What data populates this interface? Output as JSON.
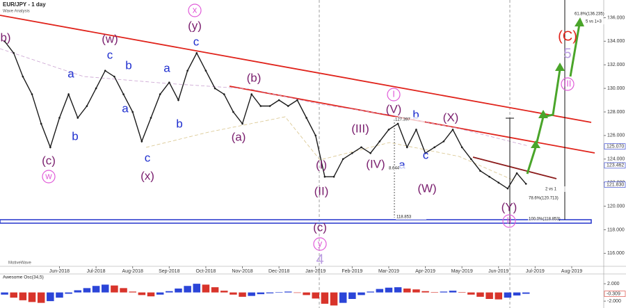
{
  "chart_data": [
    {
      "type": "line",
      "title": "EUR/JPY - 1 day",
      "subtitle": "Wave Analysis",
      "source": "MotiveWave",
      "color": "#1a1a1a",
      "categories": [
        null,
        null,
        null,
        null,
        null,
        null,
        "Jun-2018",
        null,
        null,
        null,
        "Jul-2018",
        null,
        null,
        null,
        "Aug-2018",
        null,
        null,
        null,
        "Sep-2018",
        null,
        null,
        null,
        "Oct-2018",
        null,
        null,
        null,
        "Nov-2018",
        null,
        null,
        null,
        "Dec-2018",
        null,
        null,
        null,
        "Jan-2019",
        null,
        null,
        null,
        "Feb-2019",
        null,
        null,
        null,
        "Mar-2019",
        null,
        null,
        null,
        "Apr-2019",
        null,
        null,
        null,
        "May-2019",
        null,
        null,
        null,
        "Jun-2019",
        null,
        null,
        null,
        "Jul-2019",
        null,
        null,
        null,
        "Aug-2019",
        null,
        null,
        null
      ],
      "values": [
        134,
        133,
        131,
        129.5,
        127,
        125,
        127.5,
        129.5,
        127.5,
        128.5,
        130,
        131.5,
        131,
        129.5,
        128,
        125.5,
        127.5,
        129.5,
        130.5,
        129,
        131.5,
        133,
        131.5,
        130,
        129.5,
        128,
        127,
        129.5,
        128.5,
        128.5,
        129,
        128.5,
        129,
        127.5,
        126,
        122.5,
        122.5,
        124,
        124.5,
        125,
        124.5,
        125.5,
        126.5,
        127,
        125,
        126.5,
        124.5,
        125,
        125.5,
        126.5,
        125,
        124,
        123,
        122.5,
        122,
        121.5,
        122.8,
        121.9,
        null,
        null,
        null,
        null,
        null,
        null,
        null,
        null
      ],
      "ylim": [
        114.9,
        137.5
      ],
      "yticks": [
        {
          "value": 116,
          "label": "116.000"
        },
        {
          "value": 118,
          "label": "118.000"
        },
        {
          "value": 120,
          "label": "120.000"
        },
        {
          "value": 122,
          "label": "122.000"
        },
        {
          "value": 124,
          "label": "124.000"
        },
        {
          "value": 126,
          "label": "126.000"
        },
        {
          "value": 128,
          "label": "128.000"
        },
        {
          "value": 130,
          "label": "130.000"
        },
        {
          "value": 132,
          "label": "132.000"
        },
        {
          "value": 134,
          "label": "134.000"
        },
        {
          "value": 136,
          "label": "136.000"
        }
      ],
      "annotations": [
        {
          "text": "b)",
          "color": "#7a1f6e"
        },
        {
          "text": "(c)",
          "color": "#7a1f6e"
        },
        {
          "text": "w",
          "color": "#e05ad8"
        },
        {
          "text": "a",
          "color": "#1f2fcf"
        },
        {
          "text": "b",
          "color": "#1f2fcf"
        },
        {
          "text": "(w)",
          "color": "#7a1f6e"
        },
        {
          "text": "c",
          "color": "#1f2fcf"
        },
        {
          "text": "b",
          "color": "#1f2fcf"
        },
        {
          "text": "a",
          "color": "#1f2fcf"
        },
        {
          "text": "c",
          "color": "#1f2fcf"
        },
        {
          "text": "(x)",
          "color": "#7a1f6e"
        },
        {
          "text": "a",
          "color": "#1f2fcf"
        },
        {
          "text": "b",
          "color": "#1f2fcf"
        },
        {
          "text": "x",
          "color": "#e05ad8"
        },
        {
          "text": "(y)",
          "color": "#7a1f6e"
        },
        {
          "text": "c",
          "color": "#1f2fcf"
        },
        {
          "text": "(b)",
          "color": "#7a1f6e"
        },
        {
          "text": "(a)",
          "color": "#7a1f6e"
        },
        {
          "text": "I",
          "color": "#e05ad8"
        },
        {
          "text": "(V)",
          "color": "#7a1f6e"
        },
        {
          "text": "b",
          "color": "#1f2fcf"
        },
        {
          "text": "(III)",
          "color": "#7a1f6e"
        },
        {
          "text": "(IV)",
          "color": "#7a1f6e"
        },
        {
          "text": "a",
          "color": "#1f2fcf"
        },
        {
          "text": "c",
          "color": "#1f2fcf"
        },
        {
          "text": "(W)",
          "color": "#7a1f6e"
        },
        {
          "text": "(X)",
          "color": "#7a1f6e"
        },
        {
          "text": "(I)",
          "color": "#7a1f6e"
        },
        {
          "text": "(II)",
          "color": "#7a1f6e"
        },
        {
          "text": "(c)",
          "color": "#7a1f6e"
        },
        {
          "text": "y",
          "color": "#e05ad8"
        },
        {
          "text": "4",
          "color": "#b99be0"
        },
        {
          "text": "(Y)",
          "color": "#7a1f6e"
        },
        {
          "text": "II",
          "color": "#e05ad8"
        },
        {
          "text": "III",
          "color": "#e05ad8"
        },
        {
          "text": "5",
          "color": "#b99be0"
        },
        {
          "text": "(C)",
          "color": "#e0231b"
        }
      ],
      "notes": [
        "61.8%(136.235)",
        "5 vs 1+3",
        "2 vs 1",
        "78.6%(120.713)",
        "100.0%(118.853)",
        "118.853",
        "8.644",
        "127.397"
      ],
      "price_tags": [
        {
          "value": 125.07,
          "label": "125.070",
          "color": "#ffffff"
        },
        {
          "value": 123.462,
          "label": "123.462",
          "color": "#ffffff"
        },
        {
          "value": 121.83,
          "label": "121.830",
          "color": "#ffffff"
        }
      ]
    },
    {
      "type": "bar",
      "title": "Awesome Osc(34,5)",
      "up_color": "#2b45d8",
      "down_color": "#d8342b",
      "values": [
        -0.5,
        -1.2,
        -1.8,
        -2.2,
        -2.4,
        -2.0,
        -1.2,
        -0.3,
        0.5,
        1.0,
        1.5,
        1.8,
        1.6,
        1.0,
        0.2,
        -0.6,
        -0.9,
        -0.5,
        0.3,
        0.9,
        1.5,
        2.0,
        1.8,
        1.2,
        0.4,
        -0.5,
        -1.0,
        -0.8,
        -0.4,
        -0.2,
        0.1,
        0.2,
        -0.1,
        -0.6,
        -1.4,
        -2.6,
        -3.0,
        -2.4,
        -1.5,
        -0.6,
        0.2,
        0.8,
        1.1,
        1.2,
        0.9,
        0.7,
        0.3,
        0.1,
        0.2,
        0.4,
        0.1,
        -0.5,
        -1.0,
        -1.5,
        -1.6,
        -1.2,
        -0.7,
        -0.309,
        null,
        null,
        null,
        null,
        null,
        null,
        null,
        null
      ],
      "ylim": [
        -3.1,
        4.1
      ],
      "yticks": [
        {
          "value": 2,
          "label": "2.000"
        },
        {
          "value": -2,
          "label": "-2.000"
        }
      ],
      "last": {
        "value": -0.309,
        "label": "-0.309"
      }
    }
  ]
}
